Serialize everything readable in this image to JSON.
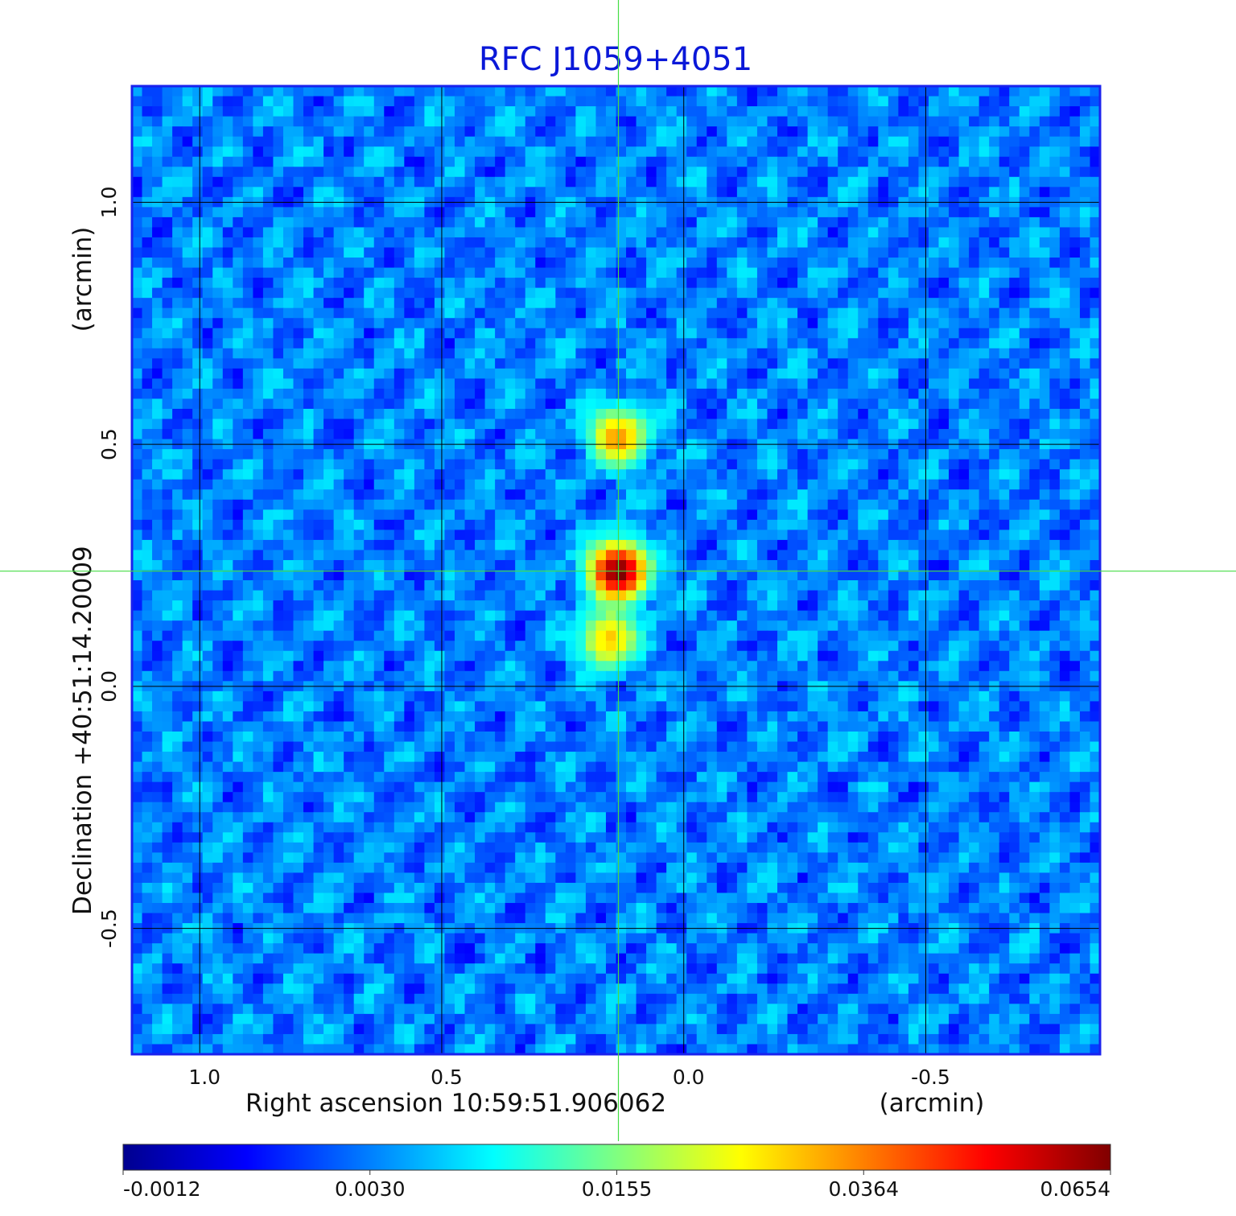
{
  "chart_data": {
    "type": "heatmap",
    "title": "RFC J1059+4051",
    "title_color": "#0a18d8",
    "xlabel": "Right ascension  10:59:51.906062",
    "xunit": "(arcmin)",
    "ylabel": "Declination  +40:51:14.20009",
    "yunit": "(arcmin)",
    "xlim": [
      1.14,
      -0.86
    ],
    "ylim": [
      -0.76,
      1.24
    ],
    "x_ticks": [
      1.0,
      0.5,
      0.0,
      -0.5
    ],
    "x_tick_labels": [
      "1.0",
      "0.5",
      "0.0",
      "-0.5"
    ],
    "y_ticks": [
      1.0,
      0.5,
      0.0,
      -0.5
    ],
    "y_tick_labels": [
      "1.0",
      "0.5",
      "0.0",
      "-0.5"
    ],
    "grid": true,
    "crosshair": {
      "x": 0.135,
      "y": 0.238,
      "color": "#44dd44"
    },
    "colormap": "jet",
    "colorbar": {
      "labels": [
        "-0.0012",
        "0.0030",
        "0.0155",
        "0.0364",
        "0.0654"
      ],
      "range": [
        -0.0012,
        0.0654
      ],
      "position": "bottom"
    },
    "background_level": 0.0012,
    "sources": [
      {
        "x": 0.135,
        "y": 0.238,
        "peak": 0.0654
      },
      {
        "x": 0.135,
        "y": 0.515,
        "peak": 0.03
      },
      {
        "x": 0.155,
        "y": 0.098,
        "peak": 0.026
      }
    ]
  }
}
